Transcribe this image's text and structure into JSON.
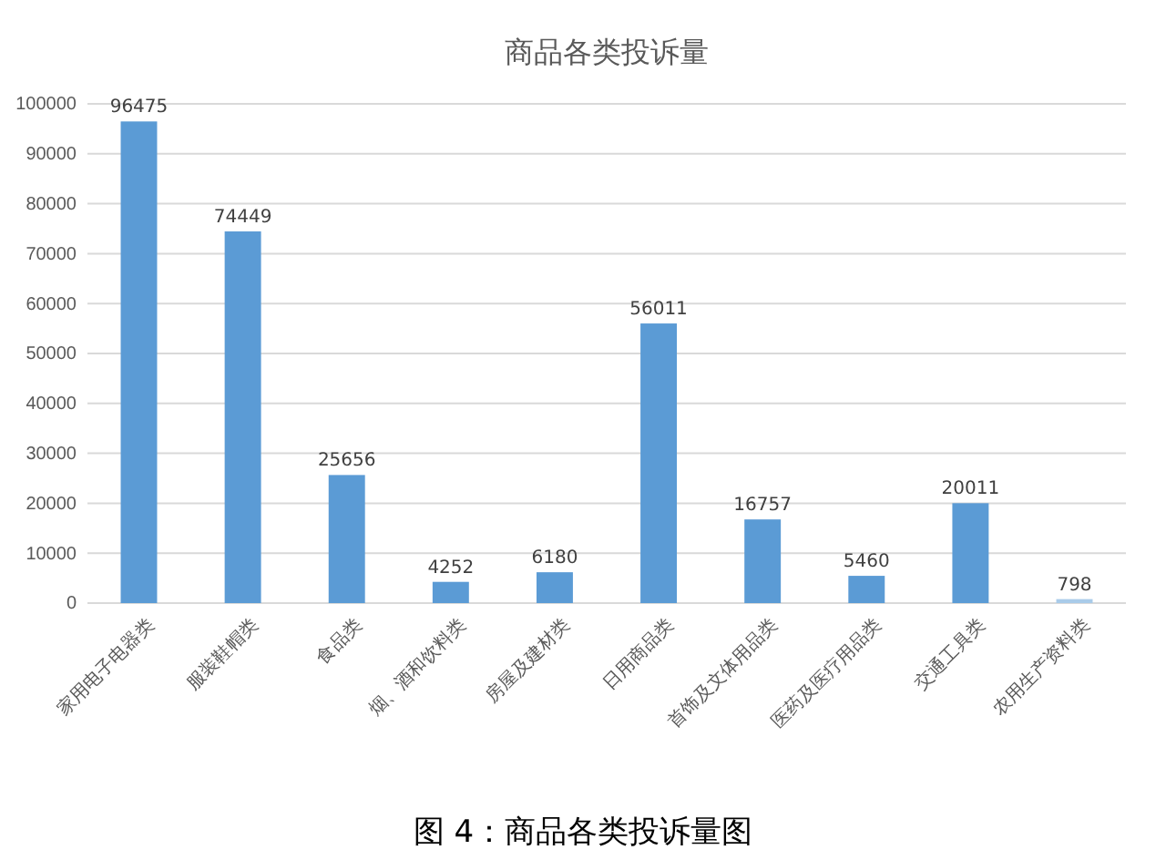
{
  "chart_data": {
    "type": "bar",
    "title": "商品各类投诉量",
    "categories": [
      "家用电子电器类",
      "服装鞋帽类",
      "食品类",
      "烟、酒和饮料类",
      "房屋及建材类",
      "日用商品类",
      "首饰及文体用品类",
      "医药及医疗用品类",
      "交通工具类",
      "农用生产资料类"
    ],
    "values": [
      96475,
      74449,
      25656,
      4252,
      6180,
      56011,
      16757,
      5460,
      20011,
      798
    ],
    "colors": [
      "#5b9bd5",
      "#5b9bd5",
      "#5b9bd5",
      "#5b9bd5",
      "#5b9bd5",
      "#5b9bd5",
      "#5b9bd5",
      "#5b9bd5",
      "#5b9bd5",
      "#a9cbe9"
    ],
    "ylim": [
      0,
      100000
    ],
    "yticks": [
      0,
      10000,
      20000,
      30000,
      40000,
      50000,
      60000,
      70000,
      80000,
      90000,
      100000
    ],
    "grid": "y",
    "data_labels": true,
    "annotations": [
      "图 4：商品各类投诉量图"
    ]
  }
}
